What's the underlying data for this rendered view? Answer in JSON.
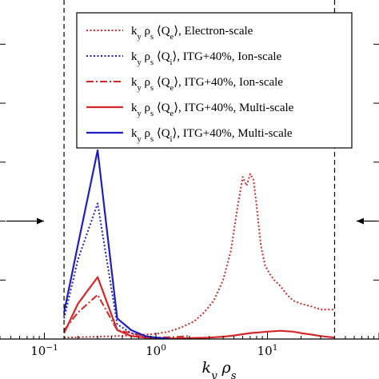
{
  "chart_data": {
    "type": "line",
    "title": "",
    "xlabel": "k_y ρ_s",
    "ylabel": "",
    "x_scale": "log",
    "xlim": [
      0.04,
      100
    ],
    "ylim": [
      0,
      1.15
    ],
    "x_ticks": [
      {
        "value": 0.1,
        "base": "10",
        "exp": "−1"
      },
      {
        "value": 1,
        "base": "10",
        "exp": "0"
      },
      {
        "value": 10,
        "base": "10",
        "exp": "1"
      }
    ],
    "y_tick_values": [
      0.2,
      0.4,
      0.6,
      0.8,
      1.0
    ],
    "vlines": [
      0.15,
      40
    ],
    "arrows": [
      {
        "side": "left",
        "y": 0.4
      },
      {
        "side": "right",
        "y": 0.4
      }
    ],
    "legend": {
      "placement": "top-right"
    },
    "series": [
      {
        "name": "k_y ρ_s ⟨Q_e⟩, Electron-scale",
        "color": "#d62728",
        "style": "dotted",
        "x": [
          0.15,
          0.2,
          0.3,
          0.45,
          0.6,
          0.8,
          1.0,
          1.3,
          1.7,
          2.2,
          2.7,
          3.3,
          4.0,
          4.7,
          5.4,
          6.0,
          6.5,
          7.0,
          7.5,
          8.0,
          8.7,
          9.5,
          10.5,
          11.5,
          13,
          15,
          17,
          20,
          25,
          30,
          35,
          40
        ],
        "y": [
          0.005,
          0.006,
          0.008,
          0.01,
          0.012,
          0.015,
          0.018,
          0.025,
          0.04,
          0.06,
          0.09,
          0.13,
          0.2,
          0.3,
          0.45,
          0.55,
          0.52,
          0.56,
          0.54,
          0.45,
          0.32,
          0.25,
          0.22,
          0.2,
          0.18,
          0.15,
          0.13,
          0.12,
          0.11,
          0.1,
          0.1,
          0.1
        ]
      },
      {
        "name": "k_y ρ_s ⟨Q_i⟩, ITG+40%, Ion-scale",
        "color": "#1f1fbf",
        "style": "dotted",
        "x": [
          0.15,
          0.2,
          0.3,
          0.45,
          0.6,
          0.8,
          1.0,
          1.3
        ],
        "y": [
          0.07,
          0.27,
          0.46,
          0.05,
          0.02,
          0.01,
          0.005,
          0.003
        ]
      },
      {
        "name": "k_y ρ_s ⟨Q_e⟩, ITG+40%, Ion-scale",
        "color": "#d62728",
        "style": "dashdot",
        "x": [
          0.15,
          0.2,
          0.3,
          0.45,
          0.6,
          0.8,
          1.0,
          1.5,
          2.0
        ],
        "y": [
          0.03,
          0.09,
          0.15,
          0.03,
          0.02,
          0.01,
          0.005,
          0.007,
          0.01
        ]
      },
      {
        "name": "k_y ρ_s ⟨Q_e⟩, ITG+40%, Multi-scale",
        "color": "#d62728",
        "style": "solid",
        "x": [
          0.15,
          0.2,
          0.3,
          0.45,
          0.6,
          0.8,
          1.0,
          1.5,
          2,
          3,
          4,
          5,
          7,
          10,
          13,
          17,
          20,
          25,
          30,
          40
        ],
        "y": [
          0.02,
          0.12,
          0.21,
          0.03,
          0.01,
          0.005,
          0.003,
          0.002,
          0.003,
          0.005,
          0.008,
          0.012,
          0.02,
          0.025,
          0.028,
          0.025,
          0.02,
          0.015,
          0.01,
          0.005
        ]
      },
      {
        "name": "k_y ρ_s ⟨Q_i⟩, ITG+40%, Multi-scale",
        "color": "#1f1fbf",
        "style": "solid",
        "x": [
          0.15,
          0.2,
          0.3,
          0.45,
          0.6,
          0.8,
          1.0,
          1.3
        ],
        "y": [
          0.09,
          0.32,
          0.64,
          0.07,
          0.03,
          0.01,
          0.005,
          0.002
        ]
      }
    ]
  }
}
